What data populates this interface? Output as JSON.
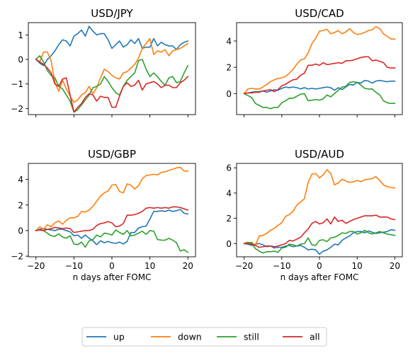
{
  "chart_data": [
    {
      "type": "line",
      "title": "USD/JPY",
      "xlabel": "",
      "xlim": [
        -22,
        22
      ],
      "ylim": [
        -2.25,
        1.5
      ],
      "xticks": [
        -20,
        -10,
        0,
        10,
        20
      ],
      "yticks": [
        -2,
        -1,
        0,
        1
      ],
      "ytick_labels": [
        "−2",
        "−1",
        "0",
        "1"
      ],
      "show_xtick_labels": false,
      "x": [
        -20,
        -19,
        -18,
        -17,
        -16,
        -15,
        -14,
        -13,
        -12,
        -11,
        -10,
        -9,
        -8,
        -7,
        -6,
        -5,
        -4,
        -3,
        -2,
        -1,
        0,
        1,
        2,
        3,
        4,
        5,
        6,
        7,
        8,
        9,
        10,
        11,
        12,
        13,
        14,
        15,
        16,
        17,
        18,
        19,
        20
      ],
      "series": [
        {
          "name": "up",
          "values": [
            0,
            -0.15,
            -0.25,
            0,
            0.15,
            0.35,
            0.6,
            0.8,
            0.75,
            0.55,
            0.95,
            1.05,
            1.2,
            0.95,
            1.35,
            1.15,
            1.0,
            1.05,
            1.05,
            0.8,
            0.45,
            0.6,
            0.75,
            0.5,
            0.6,
            0.8,
            0.65,
            0.85,
            0.45,
            0.5,
            0.5,
            0.85,
            0.55,
            0.7,
            0.6,
            0.55,
            0.55,
            0.4,
            0.6,
            0.7,
            0.75
          ]
        },
        {
          "name": "down",
          "values": [
            0,
            -0.1,
            0.3,
            0.3,
            -0.05,
            -0.95,
            -1.3,
            -0.85,
            -1.2,
            -1.5,
            -1.75,
            -1.65,
            -1.45,
            -1.35,
            -1.1,
            -1.4,
            -1.15,
            -0.75,
            -0.4,
            -0.5,
            -0.65,
            -0.75,
            -0.8,
            -0.55,
            -0.5,
            -0.35,
            -0.2,
            0.05,
            0.45,
            0.65,
            0.85,
            0.2,
            0.35,
            0.3,
            0.4,
            0.15,
            0.35,
            0.4,
            0.45,
            0.55,
            0.65
          ]
        },
        {
          "name": "still",
          "values": [
            0,
            0.15,
            -0.1,
            -0.45,
            -0.65,
            -0.75,
            -1.1,
            -1.2,
            -1.45,
            -1.7,
            -2.15,
            -2.05,
            -1.85,
            -1.65,
            -1.45,
            -1.15,
            -1.1,
            -1.0,
            -0.7,
            -0.9,
            -1.15,
            -1.35,
            -1.45,
            -1.1,
            -0.85,
            -0.7,
            -0.55,
            -0.05,
            0.0,
            -0.4,
            -0.7,
            -0.55,
            -0.7,
            -0.9,
            -1.05,
            -0.75,
            -0.7,
            -0.95,
            -0.9,
            -0.55,
            -0.25
          ]
        },
        {
          "name": "all",
          "values": [
            0,
            -0.1,
            -0.2,
            -0.35,
            -0.55,
            -1.0,
            -1.1,
            -0.8,
            -0.75,
            -1.45,
            -2.15,
            -1.95,
            -1.8,
            -1.55,
            -1.4,
            -1.45,
            -1.7,
            -1.5,
            -1.55,
            -1.55,
            -1.95,
            -1.95,
            -1.5,
            -1.1,
            -0.95,
            -1.1,
            -1.05,
            -0.85,
            -1.25,
            -1.0,
            -0.95,
            -0.9,
            -1.0,
            -1.15,
            -1.05,
            -1.05,
            -1.15,
            -1.15,
            -0.95,
            -0.85,
            -0.7
          ]
        }
      ]
    },
    {
      "type": "line",
      "title": "USD/CAD",
      "xlabel": "",
      "xlim": [
        -22,
        22
      ],
      "ylim": [
        -1.6,
        5.4
      ],
      "xticks": [
        -20,
        -10,
        0,
        10,
        20
      ],
      "yticks": [
        0,
        2,
        4
      ],
      "ytick_labels": [
        "0",
        "2",
        "4"
      ],
      "show_xtick_labels": false,
      "x": [
        -20,
        -19,
        -18,
        -17,
        -16,
        -15,
        -14,
        -13,
        -12,
        -11,
        -10,
        -9,
        -8,
        -7,
        -6,
        -5,
        -4,
        -3,
        -2,
        -1,
        0,
        1,
        2,
        3,
        4,
        5,
        6,
        7,
        8,
        9,
        10,
        11,
        12,
        13,
        14,
        15,
        16,
        17,
        18,
        19,
        20
      ],
      "series": [
        {
          "name": "up",
          "values": [
            0,
            0.05,
            0.1,
            0.15,
            0.15,
            0.2,
            0.1,
            0.2,
            0.3,
            0.25,
            0.4,
            0.5,
            0.45,
            0.5,
            0.45,
            0.35,
            0.45,
            0.35,
            0.4,
            0.35,
            0.4,
            0.45,
            0.5,
            0.45,
            0.25,
            0.45,
            0.3,
            0.5,
            0.7,
            0.65,
            0.85,
            0.8,
            1.0,
            0.95,
            0.8,
            0.95,
            1.0,
            0.95,
            0.9,
            0.95,
            0.95
          ]
        },
        {
          "name": "down",
          "values": [
            0,
            0.35,
            0.4,
            0.35,
            0.35,
            0.5,
            0.7,
            0.9,
            1.05,
            1.15,
            1.2,
            1.3,
            1.55,
            1.85,
            2.25,
            2.55,
            2.65,
            3.1,
            3.8,
            4.2,
            4.75,
            4.8,
            4.9,
            4.55,
            4.65,
            4.8,
            4.55,
            4.7,
            4.95,
            4.65,
            4.5,
            4.55,
            4.65,
            4.8,
            4.85,
            5.1,
            4.95,
            4.55,
            4.35,
            4.15,
            4.15
          ]
        },
        {
          "name": "still",
          "values": [
            0,
            -0.15,
            -0.3,
            -0.75,
            -0.9,
            -1.05,
            -1.05,
            -1.15,
            -1.05,
            -1.05,
            -0.7,
            -0.55,
            -0.35,
            -0.35,
            -0.2,
            -0.05,
            0.0,
            -0.55,
            -0.5,
            -0.45,
            -0.5,
            -0.4,
            -0.1,
            -0.25,
            0.0,
            0.25,
            0.5,
            0.55,
            0.85,
            0.9,
            0.85,
            0.65,
            0.4,
            0.35,
            0.35,
            0.1,
            -0.1,
            -0.55,
            -0.7,
            -0.75,
            -0.75
          ]
        },
        {
          "name": "all",
          "values": [
            0,
            0.05,
            0.05,
            0.1,
            0.1,
            0.2,
            0.25,
            0.3,
            0.15,
            0.3,
            0.6,
            0.7,
            0.9,
            1.05,
            1.1,
            1.4,
            1.55,
            2.15,
            2.15,
            2.25,
            2.15,
            2.35,
            2.2,
            2.25,
            2.3,
            2.35,
            2.3,
            2.5,
            2.5,
            2.55,
            2.65,
            2.75,
            2.8,
            2.8,
            2.5,
            2.55,
            2.45,
            2.35,
            2.0,
            1.95,
            1.95
          ]
        }
      ]
    },
    {
      "type": "line",
      "title": "USD/GBP",
      "xlabel": "n days after FOMC",
      "xlim": [
        -22,
        22
      ],
      "ylim": [
        -2.05,
        5.25
      ],
      "xticks": [
        -20,
        -10,
        0,
        10,
        20
      ],
      "yticks": [
        -2,
        0,
        2,
        4
      ],
      "ytick_labels": [
        "−2",
        "0",
        "2",
        "4"
      ],
      "xtick_labels": [
        "−20",
        "−10",
        "0",
        "10",
        "20"
      ],
      "show_xtick_labels": true,
      "x": [
        -20,
        -19,
        -18,
        -17,
        -16,
        -15,
        -14,
        -13,
        -12,
        -11,
        -10,
        -9,
        -8,
        -7,
        -6,
        -5,
        -4,
        -3,
        -2,
        -1,
        0,
        1,
        2,
        3,
        4,
        5,
        6,
        7,
        8,
        9,
        10,
        11,
        12,
        13,
        14,
        15,
        16,
        17,
        18,
        19,
        20
      ],
      "series": [
        {
          "name": "up",
          "values": [
            0,
            0.1,
            0.15,
            0.1,
            0.05,
            0.0,
            0.1,
            0.1,
            0.0,
            -0.1,
            -0.4,
            -0.35,
            -0.6,
            -0.35,
            -0.6,
            -0.8,
            -1.1,
            -0.8,
            -0.95,
            -0.85,
            -0.95,
            -1.0,
            -0.9,
            -1.05,
            -0.85,
            -0.15,
            -0.15,
            0.2,
            0.3,
            0.35,
            0.9,
            1.5,
            1.5,
            1.55,
            1.5,
            1.6,
            1.5,
            1.55,
            1.65,
            1.35,
            1.3
          ]
        },
        {
          "name": "down",
          "values": [
            0,
            0.3,
            0.1,
            0.45,
            0.3,
            0.6,
            0.75,
            0.5,
            0.8,
            1.0,
            1.0,
            1.1,
            1.5,
            1.45,
            1.6,
            1.9,
            2.3,
            2.7,
            2.95,
            3.1,
            3.55,
            3.6,
            3.05,
            2.95,
            3.65,
            3.55,
            3.25,
            3.5,
            4.05,
            4.3,
            4.35,
            4.4,
            4.35,
            4.55,
            4.6,
            4.7,
            4.8,
            4.9,
            4.95,
            4.65,
            4.65
          ]
        },
        {
          "name": "still",
          "values": [
            0,
            0.05,
            0.0,
            -0.2,
            -0.4,
            -0.45,
            -0.25,
            -0.5,
            -0.6,
            -0.4,
            -1.05,
            -1.1,
            -0.9,
            -1.3,
            -0.8,
            -0.7,
            -0.35,
            -0.5,
            -0.2,
            -0.25,
            -0.35,
            0.05,
            -0.15,
            -0.3,
            0.0,
            -0.4,
            -0.35,
            -0.2,
            -0.05,
            -0.3,
            0.0,
            -0.05,
            -0.7,
            -0.75,
            -0.75,
            -0.6,
            -0.75,
            -0.95,
            -1.6,
            -1.5,
            -1.7
          ]
        },
        {
          "name": "all",
          "values": [
            0,
            0.05,
            0.0,
            0.1,
            0.15,
            0.25,
            0.2,
            0.15,
            0.2,
            0.15,
            -0.15,
            -0.1,
            -0.05,
            0.0,
            0.0,
            0.1,
            0.4,
            0.55,
            0.6,
            0.7,
            0.6,
            0.3,
            0.35,
            0.55,
            1.2,
            1.2,
            1.25,
            1.35,
            1.5,
            1.75,
            1.8,
            1.75,
            1.8,
            1.75,
            1.8,
            1.75,
            1.85,
            1.85,
            1.8,
            1.7,
            1.6
          ]
        }
      ]
    },
    {
      "type": "line",
      "title": "USD/AUD",
      "xlabel": "n days after FOMC",
      "xlim": [
        -22,
        22
      ],
      "ylim": [
        -1.05,
        6.35
      ],
      "xticks": [
        -20,
        -10,
        0,
        10,
        20
      ],
      "yticks": [
        0,
        2,
        4,
        6
      ],
      "ytick_labels": [
        "0",
        "2",
        "4",
        "6"
      ],
      "xtick_labels": [
        "−20",
        "−10",
        "0",
        "10",
        "20"
      ],
      "show_xtick_labels": true,
      "x": [
        -20,
        -19,
        -18,
        -17,
        -16,
        -15,
        -14,
        -13,
        -12,
        -11,
        -10,
        -9,
        -8,
        -7,
        -6,
        -5,
        -4,
        -3,
        -2,
        -1,
        0,
        1,
        2,
        3,
        4,
        5,
        6,
        7,
        8,
        9,
        10,
        11,
        12,
        13,
        14,
        15,
        16,
        17,
        18,
        19,
        20
      ],
      "series": [
        {
          "name": "up",
          "values": [
            0,
            -0.05,
            -0.15,
            -0.05,
            0.0,
            -0.1,
            -0.25,
            -0.2,
            -0.35,
            -0.3,
            -0.3,
            -0.2,
            -0.15,
            -0.25,
            -0.2,
            -0.15,
            -0.3,
            -0.5,
            -0.45,
            -0.5,
            -0.85,
            -0.6,
            -0.5,
            -0.3,
            -0.05,
            -0.1,
            0.25,
            0.45,
            0.6,
            0.85,
            0.95,
            0.95,
            0.85,
            1.0,
            0.9,
            0.8,
            0.85,
            0.9,
            0.95,
            1.1,
            1.05
          ]
        },
        {
          "name": "down",
          "values": [
            0,
            0.05,
            0.1,
            -0.15,
            0.6,
            0.65,
            0.8,
            1.05,
            1.2,
            1.45,
            1.65,
            2.15,
            2.3,
            2.55,
            3.05,
            3.3,
            3.55,
            4.85,
            5.5,
            5.55,
            5.2,
            5.45,
            5.85,
            5.55,
            4.65,
            4.8,
            5.1,
            4.95,
            4.85,
            4.9,
            5.0,
            4.9,
            5.05,
            5.1,
            5.15,
            5.3,
            5.0,
            4.65,
            4.5,
            4.45,
            4.4
          ]
        },
        {
          "name": "still",
          "values": [
            0,
            0.1,
            0.05,
            -0.4,
            -0.6,
            -0.75,
            -0.65,
            -0.65,
            -0.6,
            -0.7,
            -0.35,
            -0.3,
            -0.05,
            -0.1,
            -0.2,
            -0.05,
            0.0,
            0.45,
            -0.1,
            -0.15,
            0.25,
            0.3,
            0.15,
            0.45,
            0.5,
            0.65,
            0.85,
            0.8,
            0.95,
            0.95,
            0.75,
            0.85,
            1.05,
            0.85,
            0.75,
            0.85,
            0.95,
            0.85,
            0.75,
            0.7,
            0.65
          ]
        },
        {
          "name": "all",
          "values": [
            0,
            0.0,
            -0.05,
            -0.15,
            -0.3,
            -0.25,
            -0.2,
            -0.2,
            -0.25,
            -0.2,
            -0.1,
            0.0,
            0.25,
            0.2,
            0.35,
            0.5,
            0.85,
            1.15,
            1.6,
            1.75,
            1.55,
            1.65,
            1.95,
            1.55,
            2.1,
            1.75,
            1.85,
            1.6,
            1.75,
            1.9,
            2.0,
            2.1,
            2.2,
            2.2,
            2.2,
            2.25,
            2.1,
            2.1,
            2.1,
            1.95,
            1.9
          ]
        }
      ]
    }
  ],
  "series_colors": {
    "up": "#1f77b4",
    "down": "#ff7f0e",
    "still": "#2ca02c",
    "all": "#d62728"
  },
  "legend": {
    "placement": "bottom-center",
    "entries": [
      {
        "name": "up",
        "color": "#1f77b4"
      },
      {
        "name": "down",
        "color": "#ff7f0e"
      },
      {
        "name": "still",
        "color": "#2ca02c"
      },
      {
        "name": "all",
        "color": "#d62728"
      }
    ]
  }
}
